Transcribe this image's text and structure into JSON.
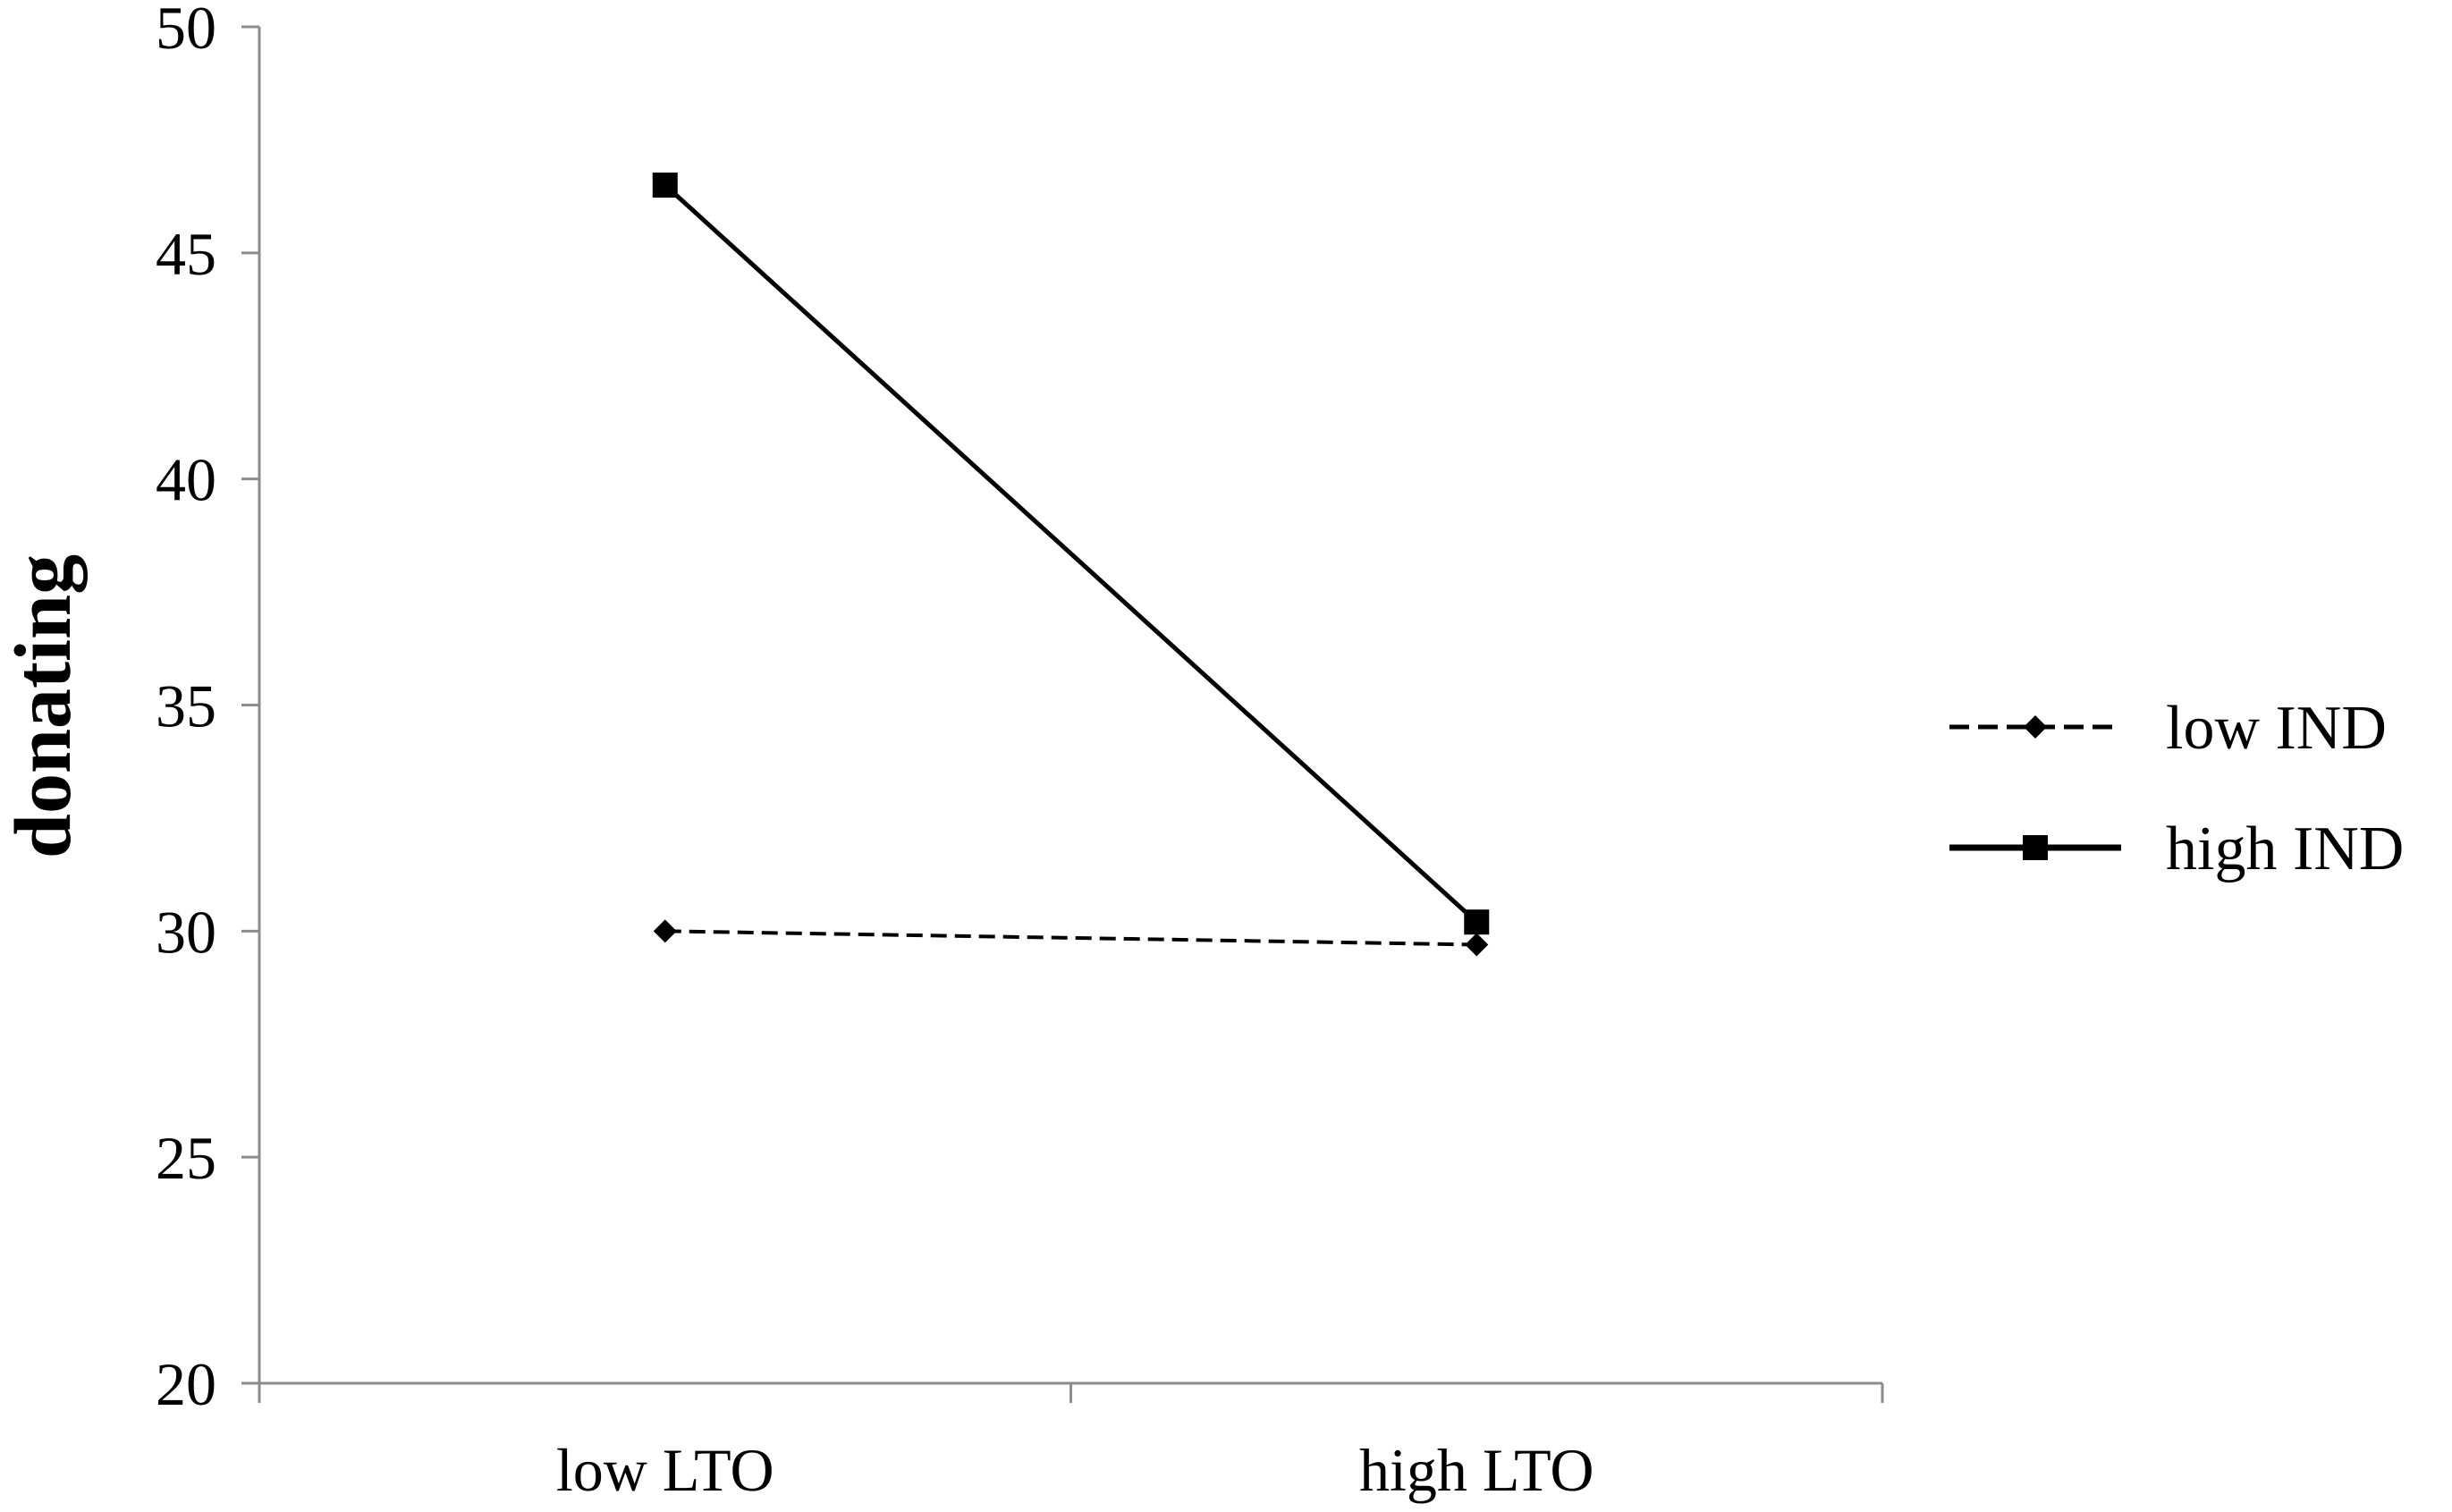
{
  "chart_data": {
    "type": "line",
    "categories": [
      "low LTO",
      "high LTO"
    ],
    "ylabel": "donating",
    "xlabel": "",
    "ylim": [
      20,
      50
    ],
    "yticks": [
      20,
      25,
      30,
      35,
      40,
      45,
      50
    ],
    "grid": false,
    "legend_position": "right",
    "series": [
      {
        "name": "low IND",
        "values": [
          30.0,
          29.7
        ],
        "line_style": "dashed",
        "marker": "diamond",
        "color": "#000000"
      },
      {
        "name": "high IND",
        "values": [
          46.5,
          30.2
        ],
        "line_style": "solid",
        "marker": "square",
        "color": "#000000"
      }
    ]
  }
}
